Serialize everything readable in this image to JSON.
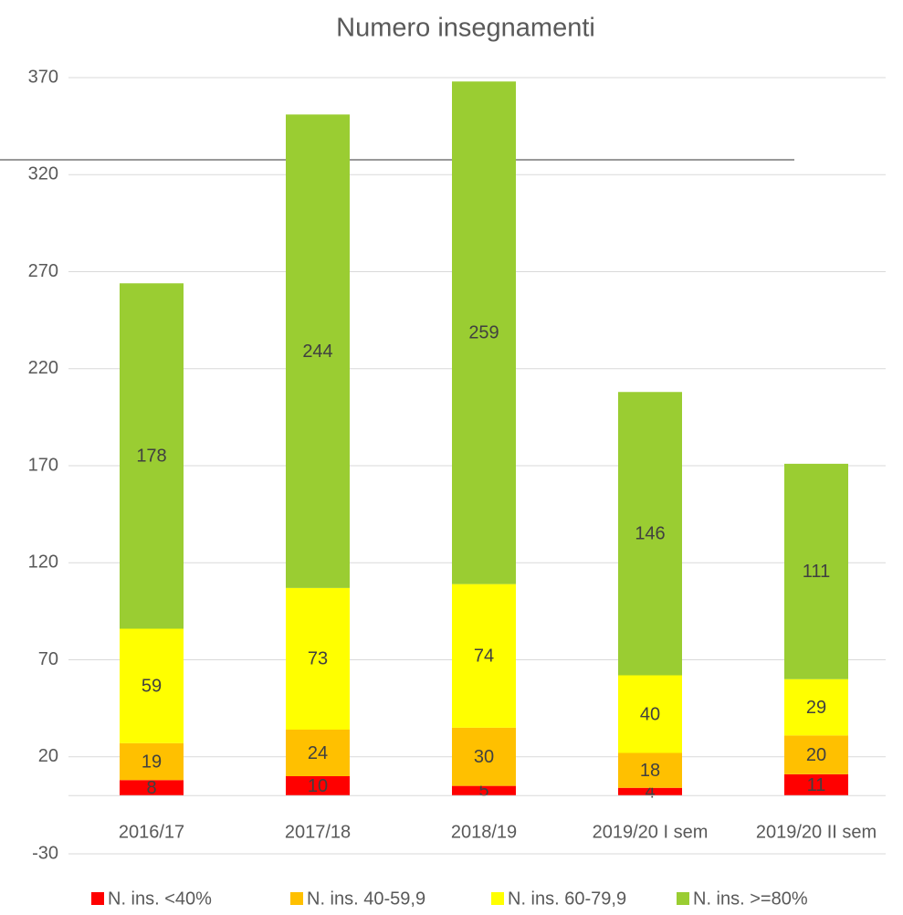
{
  "chart_data": {
    "type": "stacked_bar",
    "title": "Numero insegnamenti",
    "categories": [
      "2016/17",
      "2017/18",
      "2018/19",
      "2019/20 I sem",
      "2019/20 II sem"
    ],
    "series": [
      {
        "name": "N. ins. <40%",
        "color": "#ff0000",
        "values": [
          8,
          10,
          5,
          4,
          11
        ]
      },
      {
        "name": "N. ins. 40-59,9",
        "color": "#ffc000",
        "values": [
          19,
          24,
          30,
          18,
          20
        ]
      },
      {
        "name": "N. ins. 60-79,9",
        "color": "#ffff00",
        "values": [
          59,
          73,
          74,
          40,
          29
        ]
      },
      {
        "name": "N. ins. >=80%",
        "color": "#9acd32",
        "values": [
          178,
          244,
          259,
          146,
          111
        ]
      }
    ],
    "ylim": [
      -30,
      370
    ],
    "yticks": [
      -30,
      20,
      70,
      120,
      170,
      220,
      270,
      320,
      370
    ],
    "grid": true,
    "legend": "bottom"
  }
}
